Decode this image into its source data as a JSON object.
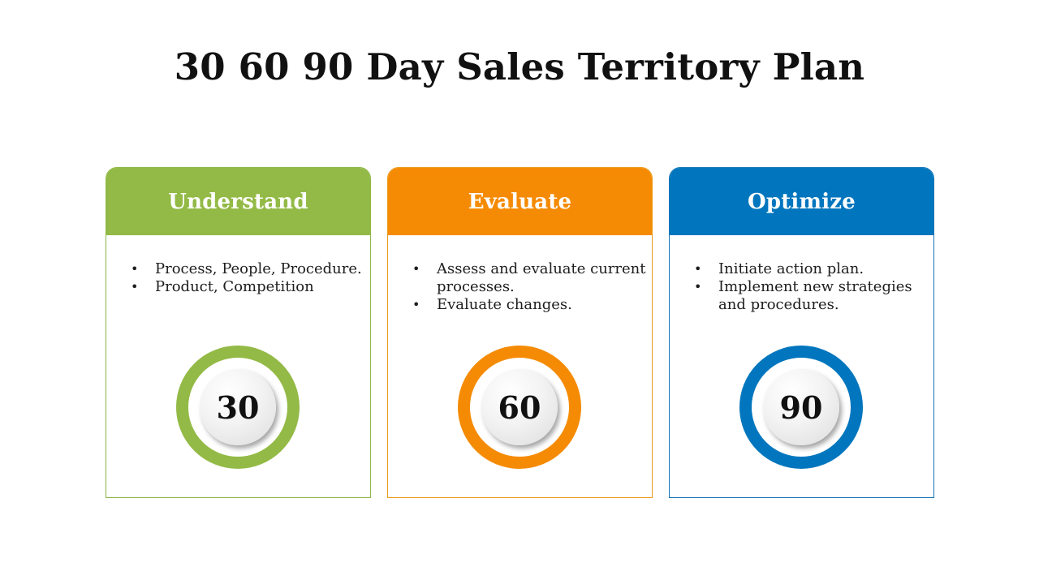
{
  "title": "30 60 90 Day Sales Territory Plan",
  "colors": {
    "green": "#93BA46",
    "orange": "#F58B04",
    "blue": "#0176BE"
  },
  "cards": [
    {
      "heading": "Understand",
      "bullets": [
        "Process, People, Procedure.",
        "Product, Competition"
      ],
      "number": "30"
    },
    {
      "heading": "Evaluate",
      "bullets": [
        "Assess and evaluate current processes.",
        "Evaluate changes."
      ],
      "number": "60"
    },
    {
      "heading": "Optimize",
      "bullets": [
        "Initiate action plan.",
        "Implement new strategies and procedures."
      ],
      "number": "90"
    }
  ]
}
